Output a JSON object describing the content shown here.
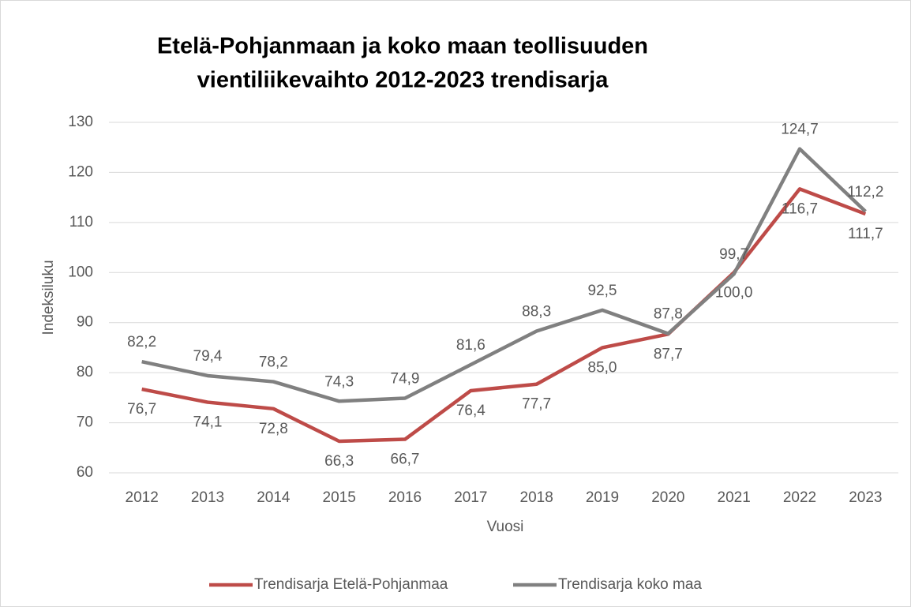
{
  "chart_data": {
    "type": "line",
    "title": [
      "Etelä-Pohjanmaan ja koko maan teollisuuden",
      "vientiliikevaihto 2012-2023 trendisarja"
    ],
    "x_label": "Vuosi",
    "y_label": "Indeksiluku",
    "categories": [
      "2012",
      "2013",
      "2014",
      "2015",
      "2016",
      "2017",
      "2018",
      "2019",
      "2020",
      "2021",
      "2022",
      "2023"
    ],
    "series": [
      {
        "name": "Trendisarja Etelä-Pohjanmaa",
        "color": "#be4b48",
        "values": [
          76.7,
          74.1,
          72.8,
          66.3,
          66.7,
          76.4,
          77.7,
          85.0,
          87.7,
          100.0,
          116.7,
          111.7
        ],
        "value_labels": [
          "76,7",
          "74,1",
          "72,8",
          "66,3",
          "66,7",
          "76,4",
          "77,7",
          "85,0",
          "87,7",
          "100,0",
          "116,7",
          "111,7"
        ]
      },
      {
        "name": "Trendisarja koko maa",
        "color": "#808080",
        "values": [
          82.2,
          79.4,
          78.2,
          74.3,
          74.9,
          81.6,
          88.3,
          92.5,
          87.8,
          99.7,
          124.7,
          112.2
        ],
        "value_labels": [
          "82,2",
          "79,4",
          "78,2",
          "74,3",
          "74,9",
          "81,6",
          "88,3",
          "92,5",
          "87,8",
          "99,7",
          "124,7",
          "112,2"
        ]
      }
    ],
    "ylim": [
      60,
      130
    ],
    "yticks": [
      60,
      70,
      80,
      90,
      100,
      110,
      120,
      130
    ],
    "grid": true,
    "legend": "bottom"
  }
}
